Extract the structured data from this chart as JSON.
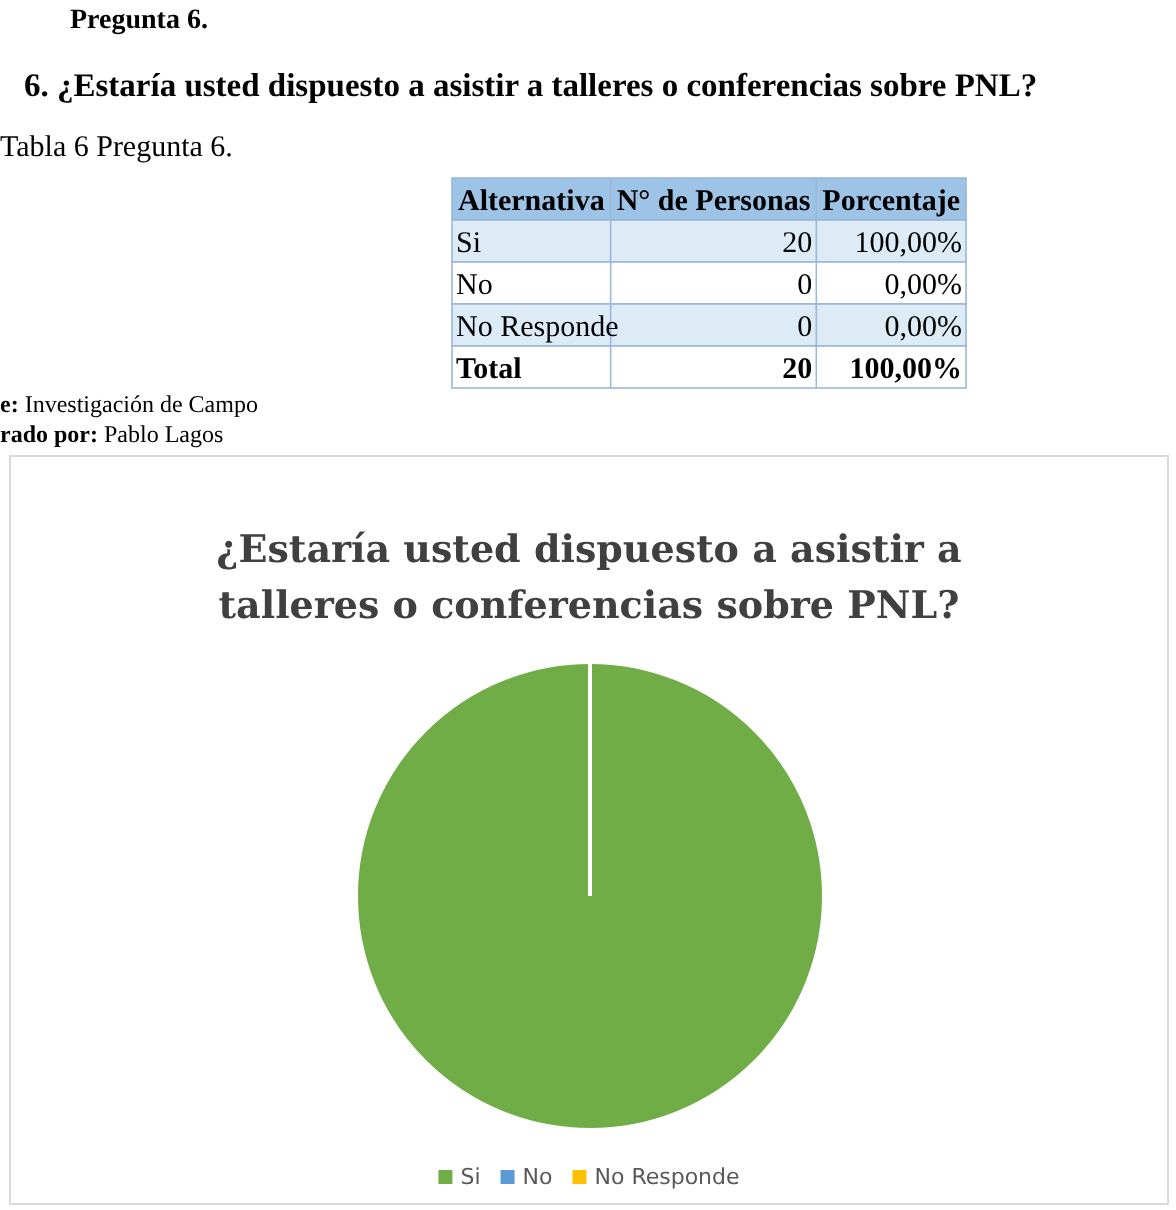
{
  "chart_data": {
    "type": "pie",
    "title": "¿Estaría usted dispuesto a asistir a talleres o conferencias sobre PNL?",
    "categories": [
      "Si",
      "No",
      "No Responde"
    ],
    "values": [
      100,
      0,
      0
    ],
    "colors": [
      "#70ad47",
      "#5b9bd5",
      "#ffc000"
    ],
    "legend": "bottom",
    "annotations": [
      "Pregunta 6.",
      "6.   ¿Estaría usted dispuesto a asistir a talleres o conferencias sobre PNL?",
      "Tabla 6 Pregunta 6.",
      "Alternativa",
      "N° de Personas",
      "Porcentaje",
      "20",
      "100,00%",
      "0",
      "0,00%",
      "0",
      "0,00%",
      "Total",
      "20",
      "100,00%",
      "e: Investigación de Campo",
      "rado por: Pablo Lagos"
    ]
  }
}
